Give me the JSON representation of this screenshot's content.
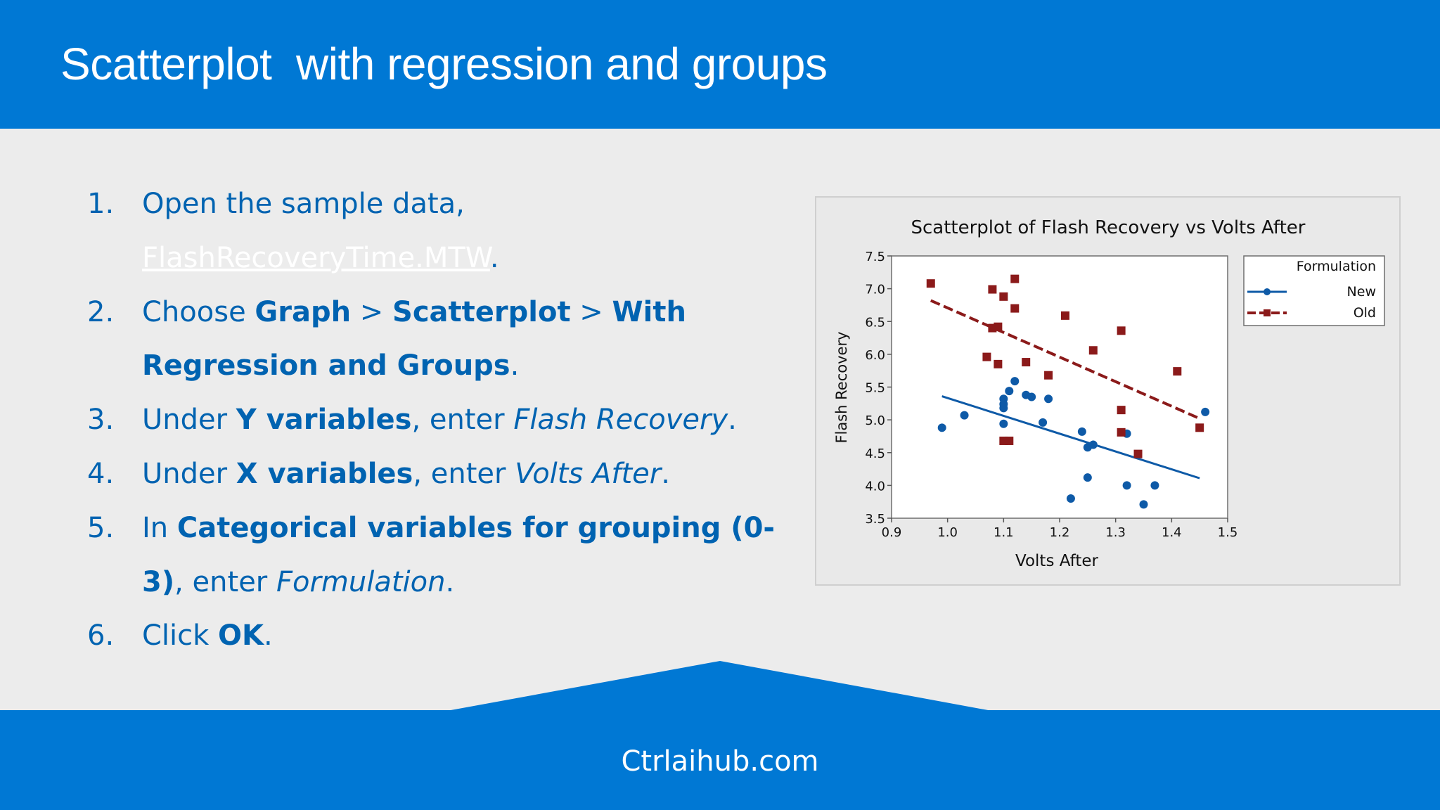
{
  "slide": {
    "title": "Scatterplot  with regression and groups",
    "footer": "Ctrlaihub.com"
  },
  "steps": [
    {
      "number": "1.",
      "parts": [
        {
          "text": "Open the sample data, ",
          "style": "normal"
        },
        {
          "text": "FlashRecoveryTime.MTW",
          "style": "link"
        },
        {
          "text": ".",
          "style": "normal"
        }
      ]
    },
    {
      "number": "2.",
      "parts": [
        {
          "text": "Choose ",
          "style": "normal"
        },
        {
          "text": "Graph",
          "style": "bold"
        },
        {
          "text": " > ",
          "style": "normal"
        },
        {
          "text": "Scatterplot",
          "style": "bold"
        },
        {
          "text": " > ",
          "style": "normal"
        },
        {
          "text": "With Regression and Groups",
          "style": "bold"
        },
        {
          "text": ".",
          "style": "normal"
        }
      ]
    },
    {
      "number": "3.",
      "parts": [
        {
          "text": "Under ",
          "style": "normal"
        },
        {
          "text": "Y variables",
          "style": "bold"
        },
        {
          "text": ", enter ",
          "style": "normal"
        },
        {
          "text": "Flash Recovery",
          "style": "italic"
        },
        {
          "text": ".",
          "style": "normal"
        }
      ]
    },
    {
      "number": "4.",
      "parts": [
        {
          "text": "Under ",
          "style": "normal"
        },
        {
          "text": "X variables",
          "style": "bold"
        },
        {
          "text": ", enter ",
          "style": "normal"
        },
        {
          "text": "Volts After",
          "style": "italic"
        },
        {
          "text": ".",
          "style": "normal"
        }
      ]
    },
    {
      "number": "5.",
      "parts": [
        {
          "text": "In ",
          "style": "normal"
        },
        {
          "text": "Categorical variables for grouping (0-3)",
          "style": "bold"
        },
        {
          "text": ", enter ",
          "style": "normal"
        },
        {
          "text": "Formulation",
          "style": "italic"
        },
        {
          "text": ".",
          "style": "normal"
        }
      ]
    },
    {
      "number": "6.",
      "parts": [
        {
          "text": "Click ",
          "style": "normal"
        },
        {
          "text": "OK",
          "style": "bold"
        },
        {
          "text": ".",
          "style": "normal"
        }
      ]
    }
  ],
  "colors": {
    "accent": "#0078d4",
    "text": "#0063b1",
    "new_series": "#0e5aa7",
    "old_series": "#8b1a1a"
  },
  "chart_data": {
    "type": "scatter",
    "title": "Scatterplot of Flash Recovery vs Volts After",
    "xlabel": "Volts After",
    "ylabel": "Flash Recovery",
    "xlim": [
      0.9,
      1.5
    ],
    "ylim": [
      3.5,
      7.5
    ],
    "xticks": [
      "0.9",
      "1.0",
      "1.1",
      "1.2",
      "1.3",
      "1.4",
      "1.5"
    ],
    "yticks": [
      "3.5",
      "4.0",
      "4.5",
      "5.0",
      "5.5",
      "6.0",
      "6.5",
      "7.0",
      "7.5"
    ],
    "grid": false,
    "legend": {
      "title": "Formulation",
      "position": "right"
    },
    "series": [
      {
        "name": "New",
        "marker": "circle",
        "color": "#0e5aa7",
        "x": [
          0.99,
          1.03,
          1.1,
          1.1,
          1.1,
          1.1,
          1.11,
          1.12,
          1.14,
          1.15,
          1.17,
          1.18,
          1.22,
          1.24,
          1.25,
          1.25,
          1.26,
          1.32,
          1.32,
          1.35,
          1.37,
          1.46
        ],
        "y": [
          4.88,
          5.07,
          4.94,
          5.18,
          5.24,
          5.32,
          5.44,
          5.59,
          5.38,
          5.35,
          4.96,
          5.32,
          3.8,
          4.82,
          4.12,
          4.58,
          4.62,
          4.79,
          4.0,
          3.71,
          4.0,
          5.12
        ],
        "fit": {
          "x": [
            0.99,
            1.45
          ],
          "y": [
            5.36,
            4.11
          ]
        }
      },
      {
        "name": "Old",
        "marker": "square",
        "color": "#8b1a1a",
        "x": [
          0.97,
          1.07,
          1.08,
          1.08,
          1.09,
          1.09,
          1.1,
          1.1,
          1.11,
          1.12,
          1.12,
          1.14,
          1.18,
          1.21,
          1.26,
          1.31,
          1.31,
          1.31,
          1.34,
          1.41,
          1.45
        ],
        "y": [
          7.08,
          5.96,
          6.99,
          6.4,
          5.85,
          6.42,
          6.88,
          4.68,
          4.68,
          7.15,
          6.7,
          5.88,
          5.68,
          6.59,
          6.06,
          6.36,
          5.15,
          4.81,
          4.48,
          5.74,
          4.88
        ],
        "fit": {
          "x": [
            0.97,
            1.45
          ],
          "y": [
            6.82,
            5.02
          ]
        }
      }
    ]
  }
}
